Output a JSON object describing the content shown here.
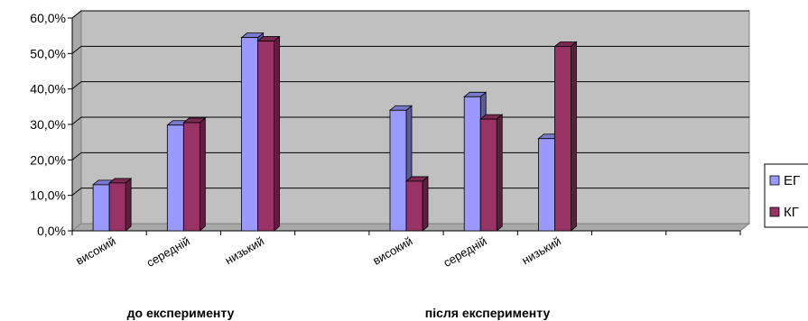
{
  "chart_data": {
    "type": "bar",
    "categories": [
      "високий",
      "середній",
      "низький",
      "високий",
      "середній",
      "низький"
    ],
    "groups": [
      "до експерименту",
      "після експерименту"
    ],
    "series": [
      {
        "name": "ЕГ",
        "values": [
          13.0,
          29.8,
          54.5,
          34.0,
          37.8,
          26.0
        ],
        "color": "#9999ff"
      },
      {
        "name": "КГ",
        "values": [
          13.5,
          30.5,
          53.5,
          14.0,
          31.5,
          52.0
        ],
        "color": "#993366"
      }
    ],
    "y_ticks": [
      "0,0%",
      "10,0%",
      "20,0%",
      "30,0%",
      "40,0%",
      "50,0%",
      "60,0%"
    ],
    "ylim": [
      0,
      60
    ],
    "grid": true,
    "legend_position": "right",
    "plot_background": "#c0c0c0"
  }
}
